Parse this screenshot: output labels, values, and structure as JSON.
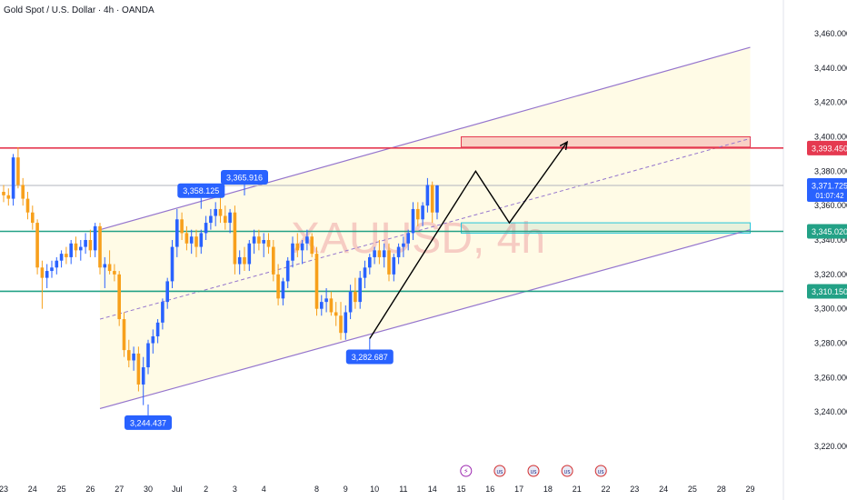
{
  "header": {
    "title": "Gold Spot / U.S. Dollar · 4h · OANDA"
  },
  "watermark": "XAUUSD, 4h",
  "colors": {
    "up": "#2962ff",
    "down": "#f7a01c",
    "channel": "#9575cd",
    "channel_fill": "#fffbe6",
    "resistance": "#e53950",
    "support": "#22a186",
    "price_line": "#b2b5be",
    "callout": "#2962ff",
    "arrow": "#000000"
  },
  "chart_data": {
    "type": "candlestick",
    "ylim": [
      3210,
      3470
    ],
    "y_ticks": [
      {
        "v": 3460,
        "label": "3,460.000"
      },
      {
        "v": 3440,
        "label": "3,440.000"
      },
      {
        "v": 3420,
        "label": "3,420.000"
      },
      {
        "v": 3400,
        "label": "3,400.000"
      },
      {
        "v": 3380,
        "label": "3,380.000"
      },
      {
        "v": 3360,
        "label": "3,360.000"
      },
      {
        "v": 3340,
        "label": "3,340.000"
      },
      {
        "v": 3320,
        "label": "3,320.000"
      },
      {
        "v": 3300,
        "label": "3,300.000"
      },
      {
        "v": 3280,
        "label": "3,280.000"
      },
      {
        "v": 3260,
        "label": "3,260.000"
      },
      {
        "v": 3240,
        "label": "3,240.000"
      },
      {
        "v": 3220,
        "label": "3,220.000"
      }
    ],
    "x_ticks": [
      {
        "i": 0,
        "label": "23"
      },
      {
        "i": 6,
        "label": "24"
      },
      {
        "i": 12,
        "label": "25"
      },
      {
        "i": 18,
        "label": "26"
      },
      {
        "i": 24,
        "label": "27"
      },
      {
        "i": 30,
        "label": "30"
      },
      {
        "i": 36,
        "label": "Jul"
      },
      {
        "i": 42,
        "label": "2"
      },
      {
        "i": 48,
        "label": "3"
      },
      {
        "i": 54,
        "label": "4"
      },
      {
        "i": 65,
        "label": "8"
      },
      {
        "i": 71,
        "label": "9"
      },
      {
        "i": 77,
        "label": "10"
      },
      {
        "i": 83,
        "label": "11"
      },
      {
        "i": 89,
        "label": "14"
      },
      {
        "i": 95,
        "label": "15"
      },
      {
        "i": 101,
        "label": "16"
      },
      {
        "i": 107,
        "label": "17"
      },
      {
        "i": 113,
        "label": "18"
      },
      {
        "i": 119,
        "label": "21"
      },
      {
        "i": 125,
        "label": "22"
      },
      {
        "i": 131,
        "label": "23"
      },
      {
        "i": 137,
        "label": "24"
      },
      {
        "i": 143,
        "label": "25"
      },
      {
        "i": 149,
        "label": "28"
      },
      {
        "i": 155,
        "label": "29"
      }
    ],
    "candles": [
      {
        "o": 3368,
        "h": 3372,
        "l": 3362,
        "c": 3366
      },
      {
        "o": 3366,
        "h": 3370,
        "l": 3360,
        "c": 3364
      },
      {
        "o": 3364,
        "h": 3390,
        "l": 3360,
        "c": 3388
      },
      {
        "o": 3388,
        "h": 3394,
        "l": 3370,
        "c": 3372
      },
      {
        "o": 3372,
        "h": 3376,
        "l": 3360,
        "c": 3364
      },
      {
        "o": 3364,
        "h": 3368,
        "l": 3352,
        "c": 3356
      },
      {
        "o": 3356,
        "h": 3360,
        "l": 3346,
        "c": 3350
      },
      {
        "o": 3350,
        "h": 3352,
        "l": 3320,
        "c": 3324
      },
      {
        "o": 3324,
        "h": 3328,
        "l": 3300,
        "c": 3318
      },
      {
        "o": 3318,
        "h": 3326,
        "l": 3312,
        "c": 3322
      },
      {
        "o": 3322,
        "h": 3328,
        "l": 3318,
        "c": 3324
      },
      {
        "o": 3324,
        "h": 3330,
        "l": 3320,
        "c": 3328
      },
      {
        "o": 3328,
        "h": 3334,
        "l": 3324,
        "c": 3332
      },
      {
        "o": 3332,
        "h": 3336,
        "l": 3326,
        "c": 3330
      },
      {
        "o": 3330,
        "h": 3340,
        "l": 3326,
        "c": 3338
      },
      {
        "o": 3338,
        "h": 3342,
        "l": 3330,
        "c": 3334
      },
      {
        "o": 3334,
        "h": 3340,
        "l": 3328,
        "c": 3336
      },
      {
        "o": 3336,
        "h": 3344,
        "l": 3332,
        "c": 3340
      },
      {
        "o": 3340,
        "h": 3346,
        "l": 3330,
        "c": 3334
      },
      {
        "o": 3334,
        "h": 3350,
        "l": 3330,
        "c": 3348
      },
      {
        "o": 3348,
        "h": 3350,
        "l": 3320,
        "c": 3324
      },
      {
        "o": 3324,
        "h": 3330,
        "l": 3312,
        "c": 3326
      },
      {
        "o": 3326,
        "h": 3334,
        "l": 3320,
        "c": 3322
      },
      {
        "o": 3322,
        "h": 3326,
        "l": 3316,
        "c": 3320
      },
      {
        "o": 3320,
        "h": 3322,
        "l": 3290,
        "c": 3294
      },
      {
        "o": 3294,
        "h": 3298,
        "l": 3272,
        "c": 3276
      },
      {
        "o": 3276,
        "h": 3282,
        "l": 3266,
        "c": 3270
      },
      {
        "o": 3270,
        "h": 3278,
        "l": 3264,
        "c": 3274
      },
      {
        "o": 3274,
        "h": 3278,
        "l": 3252,
        "c": 3256
      },
      {
        "o": 3256,
        "h": 3272,
        "l": 3244,
        "c": 3266
      },
      {
        "o": 3266,
        "h": 3282,
        "l": 3262,
        "c": 3280
      },
      {
        "o": 3280,
        "h": 3288,
        "l": 3274,
        "c": 3284
      },
      {
        "o": 3284,
        "h": 3294,
        "l": 3280,
        "c": 3292
      },
      {
        "o": 3292,
        "h": 3306,
        "l": 3288,
        "c": 3304
      },
      {
        "o": 3304,
        "h": 3318,
        "l": 3300,
        "c": 3316
      },
      {
        "o": 3316,
        "h": 3340,
        "l": 3312,
        "c": 3336
      },
      {
        "o": 3336,
        "h": 3358,
        "l": 3330,
        "c": 3352
      },
      {
        "o": 3352,
        "h": 3356,
        "l": 3340,
        "c": 3344
      },
      {
        "o": 3344,
        "h": 3348,
        "l": 3334,
        "c": 3338
      },
      {
        "o": 3338,
        "h": 3346,
        "l": 3332,
        "c": 3342
      },
      {
        "o": 3342,
        "h": 3346,
        "l": 3330,
        "c": 3336
      },
      {
        "o": 3336,
        "h": 3346,
        "l": 3332,
        "c": 3344
      },
      {
        "o": 3344,
        "h": 3354,
        "l": 3340,
        "c": 3350
      },
      {
        "o": 3350,
        "h": 3358,
        "l": 3346,
        "c": 3354
      },
      {
        "o": 3354,
        "h": 3362,
        "l": 3348,
        "c": 3358
      },
      {
        "o": 3358,
        "h": 3366,
        "l": 3350,
        "c": 3354
      },
      {
        "o": 3354,
        "h": 3360,
        "l": 3346,
        "c": 3350
      },
      {
        "o": 3350,
        "h": 3358,
        "l": 3344,
        "c": 3356
      },
      {
        "o": 3356,
        "h": 3360,
        "l": 3320,
        "c": 3326
      },
      {
        "o": 3326,
        "h": 3334,
        "l": 3320,
        "c": 3330
      },
      {
        "o": 3330,
        "h": 3336,
        "l": 3322,
        "c": 3326
      },
      {
        "o": 3326,
        "h": 3340,
        "l": 3322,
        "c": 3338
      },
      {
        "o": 3338,
        "h": 3346,
        "l": 3332,
        "c": 3342
      },
      {
        "o": 3342,
        "h": 3346,
        "l": 3334,
        "c": 3338
      },
      {
        "o": 3338,
        "h": 3344,
        "l": 3330,
        "c": 3340
      },
      {
        "o": 3340,
        "h": 3344,
        "l": 3332,
        "c": 3336
      },
      {
        "o": 3336,
        "h": 3340,
        "l": 3316,
        "c": 3320
      },
      {
        "o": 3320,
        "h": 3326,
        "l": 3302,
        "c": 3306
      },
      {
        "o": 3306,
        "h": 3318,
        "l": 3302,
        "c": 3316
      },
      {
        "o": 3316,
        "h": 3330,
        "l": 3312,
        "c": 3328
      },
      {
        "o": 3328,
        "h": 3342,
        "l": 3324,
        "c": 3338
      },
      {
        "o": 3338,
        "h": 3344,
        "l": 3330,
        "c": 3334
      },
      {
        "o": 3334,
        "h": 3340,
        "l": 3326,
        "c": 3338
      },
      {
        "o": 3338,
        "h": 3346,
        "l": 3334,
        "c": 3342
      },
      {
        "o": 3342,
        "h": 3344,
        "l": 3330,
        "c": 3332
      },
      {
        "o": 3332,
        "h": 3336,
        "l": 3296,
        "c": 3300
      },
      {
        "o": 3300,
        "h": 3308,
        "l": 3296,
        "c": 3304
      },
      {
        "o": 3304,
        "h": 3312,
        "l": 3298,
        "c": 3306
      },
      {
        "o": 3306,
        "h": 3310,
        "l": 3296,
        "c": 3298
      },
      {
        "o": 3298,
        "h": 3304,
        "l": 3290,
        "c": 3296
      },
      {
        "o": 3296,
        "h": 3304,
        "l": 3282,
        "c": 3286
      },
      {
        "o": 3286,
        "h": 3302,
        "l": 3282,
        "c": 3298
      },
      {
        "o": 3298,
        "h": 3314,
        "l": 3294,
        "c": 3310
      },
      {
        "o": 3310,
        "h": 3318,
        "l": 3300,
        "c": 3304
      },
      {
        "o": 3304,
        "h": 3322,
        "l": 3300,
        "c": 3318
      },
      {
        "o": 3318,
        "h": 3328,
        "l": 3312,
        "c": 3324
      },
      {
        "o": 3324,
        "h": 3332,
        "l": 3320,
        "c": 3330
      },
      {
        "o": 3330,
        "h": 3336,
        "l": 3326,
        "c": 3334
      },
      {
        "o": 3334,
        "h": 3340,
        "l": 3326,
        "c": 3330
      },
      {
        "o": 3330,
        "h": 3338,
        "l": 3324,
        "c": 3334
      },
      {
        "o": 3334,
        "h": 3338,
        "l": 3316,
        "c": 3320
      },
      {
        "o": 3320,
        "h": 3332,
        "l": 3316,
        "c": 3330
      },
      {
        "o": 3330,
        "h": 3338,
        "l": 3326,
        "c": 3336
      },
      {
        "o": 3336,
        "h": 3342,
        "l": 3330,
        "c": 3338
      },
      {
        "o": 3338,
        "h": 3346,
        "l": 3334,
        "c": 3344
      },
      {
        "o": 3344,
        "h": 3362,
        "l": 3340,
        "c": 3358
      },
      {
        "o": 3358,
        "h": 3362,
        "l": 3348,
        "c": 3352
      },
      {
        "o": 3352,
        "h": 3362,
        "l": 3348,
        "c": 3360
      },
      {
        "o": 3360,
        "h": 3376,
        "l": 3356,
        "c": 3372
      },
      {
        "o": 3372,
        "h": 3374,
        "l": 3350,
        "c": 3356
      },
      {
        "o": 3356,
        "h": 3372,
        "l": 3352,
        "c": 3371.725
      }
    ],
    "channel": {
      "upper": [
        {
          "i": 20,
          "v": 3346
        },
        {
          "i": 155,
          "v": 3452
        }
      ],
      "lower": [
        {
          "i": 20,
          "v": 3242
        },
        {
          "i": 155,
          "v": 3346
        }
      ],
      "mid": [
        {
          "i": 20,
          "v": 3294
        },
        {
          "i": 155,
          "v": 3399
        }
      ]
    },
    "zones": [
      {
        "i0": 95,
        "i1": 155,
        "v0": 3394,
        "v1": 3400,
        "kind": "resistance"
      },
      {
        "i0": 95,
        "i1": 155,
        "v0": 3344,
        "v1": 3350,
        "kind": "support"
      }
    ],
    "levels": [
      {
        "v": 3393.45,
        "label": "3,393.450",
        "kind": "resistance"
      },
      {
        "v": 3345.02,
        "label": "3,345.020",
        "kind": "support"
      },
      {
        "v": 3310.15,
        "label": "3,310.150",
        "kind": "support"
      }
    ],
    "last_price": {
      "v": 3371.725,
      "label": "3,371.725",
      "countdown": "01:07:42"
    },
    "callouts": [
      {
        "i": 41,
        "v": 3358.125,
        "label": "3,358.125",
        "pos": "above"
      },
      {
        "i": 50,
        "v": 3365.916,
        "label": "3,365.916",
        "pos": "above"
      },
      {
        "i": 76,
        "v": 3282.687,
        "label": "3,282.687",
        "pos": "below"
      },
      {
        "i": 30,
        "v": 3244.437,
        "label": "3,244.437",
        "pos": "below"
      }
    ],
    "projection": [
      {
        "i": 76,
        "v": 3282.687
      },
      {
        "i": 98,
        "v": 3380
      },
      {
        "i": 105,
        "v": 3350
      },
      {
        "i": 117,
        "v": 3397
      }
    ],
    "events": [
      {
        "i": 96,
        "glyph": "⚡"
      },
      {
        "i": 103,
        "glyph": "US"
      },
      {
        "i": 110,
        "glyph": "US"
      },
      {
        "i": 117,
        "glyph": "US"
      },
      {
        "i": 124,
        "glyph": "US"
      }
    ]
  }
}
